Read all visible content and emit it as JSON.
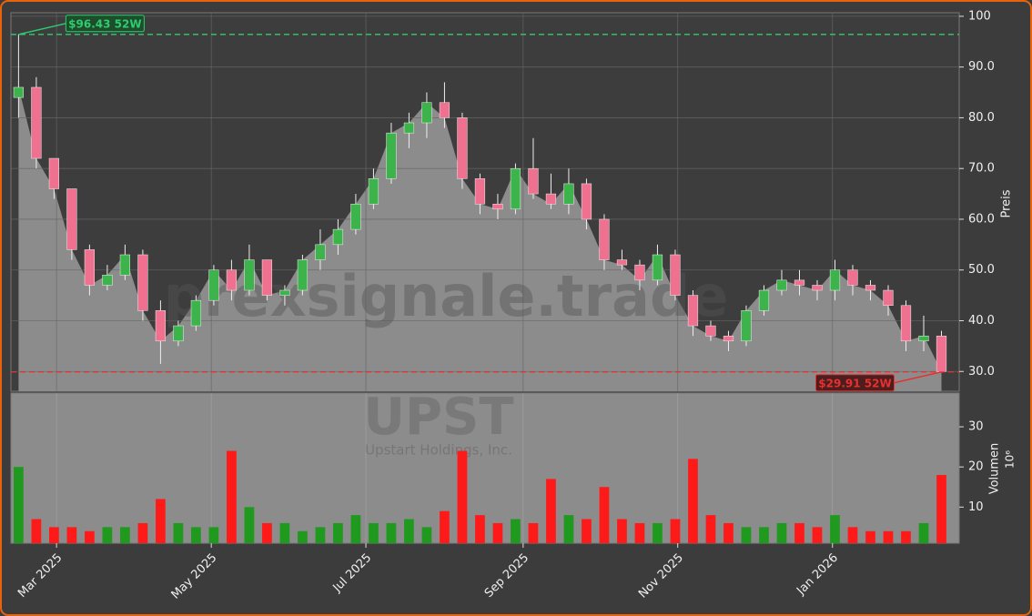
{
  "chart_data": {
    "type": "candlestick",
    "watermark": "prexsignale.trade",
    "ticker": "UPST",
    "company": "Upstart Holdings, Inc.",
    "ylabel": "Preis",
    "volume_label": "Volumen",
    "volume_offset": "10⁶",
    "open": [
      84,
      86,
      72,
      66,
      54,
      47,
      49,
      53,
      42,
      36,
      39,
      44,
      50,
      46,
      52,
      45,
      46,
      52,
      55,
      58,
      63,
      68,
      77,
      79,
      83,
      80,
      68,
      63,
      62,
      70,
      65,
      63,
      67,
      60,
      52,
      51,
      48,
      53,
      45,
      39,
      37,
      36,
      42,
      46,
      48,
      47,
      46,
      50,
      47,
      46,
      43,
      36,
      37
    ],
    "high": [
      96.43,
      88,
      72,
      66,
      55,
      51,
      55,
      54,
      44,
      40,
      45,
      51,
      52,
      55,
      52,
      47,
      53,
      58,
      60,
      65,
      70,
      79,
      81,
      85,
      87,
      81,
      69,
      65,
      71,
      76,
      69,
      70,
      68,
      61,
      54,
      52,
      55,
      54,
      46,
      40,
      38,
      43,
      47,
      50,
      50,
      48,
      52,
      51,
      48,
      47,
      44,
      41,
      38
    ],
    "low": [
      80,
      70,
      64,
      52,
      45,
      46,
      48,
      40,
      31.5,
      35,
      38,
      43,
      44,
      45,
      44,
      43,
      45,
      50,
      53,
      57,
      62,
      67,
      74,
      76,
      78,
      66,
      61,
      60,
      61,
      64,
      62,
      61,
      58,
      50,
      50,
      46,
      47,
      44,
      37,
      36,
      34,
      35,
      41,
      45,
      45,
      44,
      44,
      45,
      44,
      41,
      34,
      34,
      29.91
    ],
    "close": [
      86,
      72,
      66,
      54,
      47,
      49,
      53,
      42,
      36,
      39,
      44,
      50,
      46,
      52,
      45,
      46,
      52,
      55,
      58,
      63,
      68,
      77,
      79,
      83,
      80,
      68,
      63,
      62,
      70,
      65,
      63,
      67,
      60,
      52,
      51,
      48,
      53,
      45,
      39,
      37,
      36,
      42,
      46,
      48,
      47,
      46,
      50,
      47,
      46,
      43,
      36,
      37,
      30
    ],
    "volume": [
      20,
      7,
      5,
      5,
      4,
      5,
      5,
      6,
      12,
      6,
      5,
      5,
      24,
      10,
      6,
      6,
      4,
      5,
      6,
      8,
      6,
      6,
      7,
      5,
      9,
      24,
      8,
      6,
      7,
      6,
      17,
      8,
      7,
      15,
      7,
      6,
      6,
      7,
      22,
      8,
      6,
      5,
      5,
      6,
      6,
      5,
      8,
      5,
      4,
      4,
      4,
      6,
      18
    ],
    "up_color": "#3cb44b",
    "down_color": "#f07090",
    "volume_up_color": "#1f9a1f",
    "volume_down_color": "#ff1a1a",
    "area_color": "#8c8c8c",
    "xlim": [
      -0.43,
      53.0
    ],
    "xticks": [
      {
        "value": 2.14,
        "label": "Mar 2025"
      },
      {
        "value": 10.86,
        "label": "May 2025"
      },
      {
        "value": 19.57,
        "label": "Jul 2025"
      },
      {
        "value": 28.43,
        "label": "Sep 2025"
      },
      {
        "value": 37.14,
        "label": "Nov 2025"
      },
      {
        "value": 45.86,
        "label": "Jan 2026"
      }
    ],
    "ylim": [
      26.1,
      100.7
    ],
    "yticks": [
      {
        "value": 30,
        "label": "30.0"
      },
      {
        "value": 40,
        "label": "40.0"
      },
      {
        "value": 50,
        "label": "50.0"
      },
      {
        "value": 60,
        "label": "60.0"
      },
      {
        "value": 70,
        "label": "70.0"
      },
      {
        "value": 80,
        "label": "80.0"
      },
      {
        "value": 90,
        "label": "90.0"
      },
      100
    ],
    "volume_ylim": [
      1,
      38.4
    ],
    "volume_yticks": [
      10,
      20,
      30
    ],
    "grid": true,
    "annotations": [
      {
        "label": "$96.43 52W",
        "value": 96.43,
        "index": 0,
        "color": "#2ecc71"
      },
      {
        "label": "$29.91 52W",
        "value": 29.91,
        "index": 52,
        "color": "#e83030"
      }
    ]
  }
}
